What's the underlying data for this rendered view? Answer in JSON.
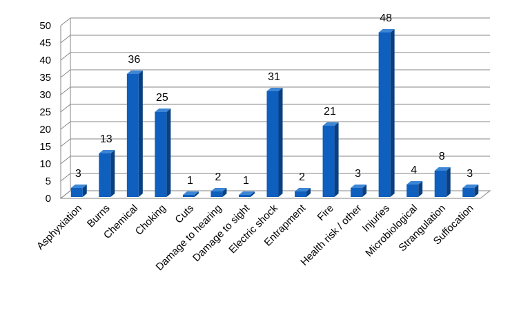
{
  "chart_data": {
    "type": "bar",
    "categories": [
      "Asphyxiation",
      "Burns",
      "Chemical",
      "Choking",
      "Cuts",
      "Damage to hearing",
      "Damage to sight",
      "Electric shock",
      "Entrapment",
      "Fire",
      "Health risk / other",
      "Injuries",
      "Microbiological",
      "Strangulation",
      "Suffocation"
    ],
    "values": [
      3,
      13,
      36,
      25,
      1,
      2,
      1,
      31,
      2,
      21,
      3,
      48,
      4,
      8,
      3
    ],
    "ylim": [
      0,
      50
    ],
    "yticks": [
      "0",
      "5",
      "10",
      "15",
      "20",
      "25",
      "30",
      "35",
      "40",
      "45",
      "50"
    ],
    "grid": true,
    "data_labels": true,
    "bar_color": "#0F5FBE",
    "bar_side_color": "#0A3F80",
    "bar_top_color": "#3D86D6"
  }
}
